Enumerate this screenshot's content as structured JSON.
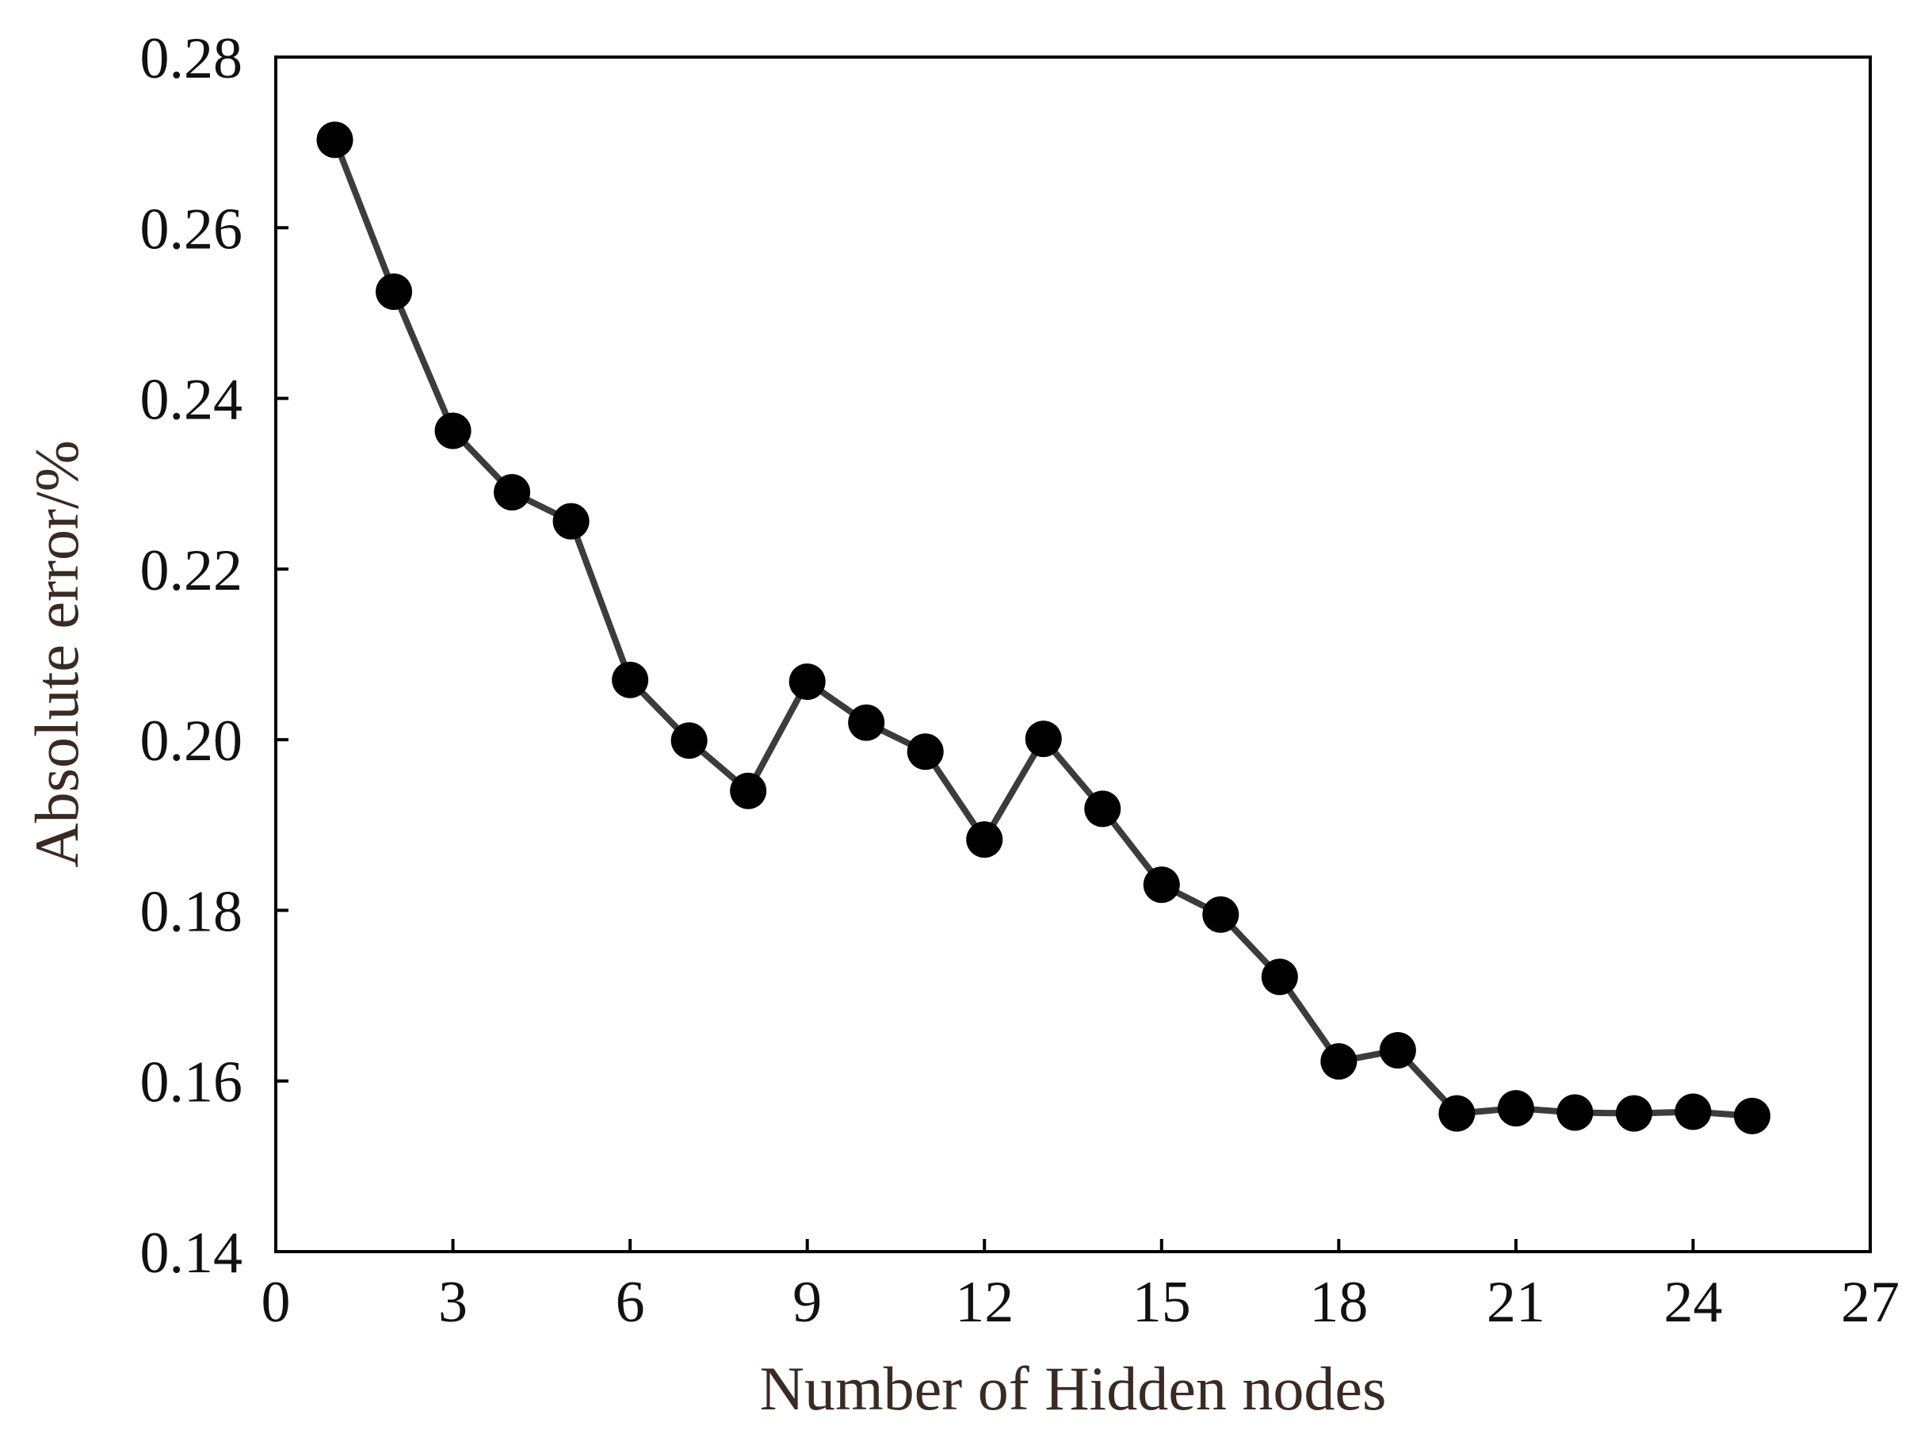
{
  "chart_data": {
    "type": "line",
    "title": "",
    "xlabel": "Number of Hidden nodes",
    "ylabel": "Absolute error/%",
    "xlim": [
      0,
      27
    ],
    "ylim": [
      0.14,
      0.28
    ],
    "x_ticks": [
      "0",
      "3",
      "6",
      "9",
      "12",
      "15",
      "18",
      "21",
      "24",
      "27"
    ],
    "y_ticks": [
      "0.14",
      "0.16",
      "0.18",
      "0.20",
      "0.22",
      "0.24",
      "0.26",
      "0.28"
    ],
    "grid": false,
    "series": [
      {
        "marker": "filled-circle",
        "color": "#000000",
        "line_color": "#3c3c3c",
        "x": [
          1,
          2,
          3,
          4,
          5,
          6,
          7,
          8,
          9,
          10,
          11,
          12,
          13,
          14,
          15,
          16,
          17,
          18,
          19,
          20,
          21,
          22,
          23,
          24,
          25
        ],
        "y": [
          0.2703,
          0.2525,
          0.2362,
          0.229,
          0.2256,
          0.207,
          0.1999,
          0.194,
          0.2068,
          0.202,
          0.1986,
          0.1883,
          0.2001,
          0.1919,
          0.183,
          0.1795,
          0.1722,
          0.1623,
          0.1636,
          0.1562,
          0.1568,
          0.1563,
          0.1562,
          0.1564,
          0.1559
        ]
      }
    ]
  }
}
